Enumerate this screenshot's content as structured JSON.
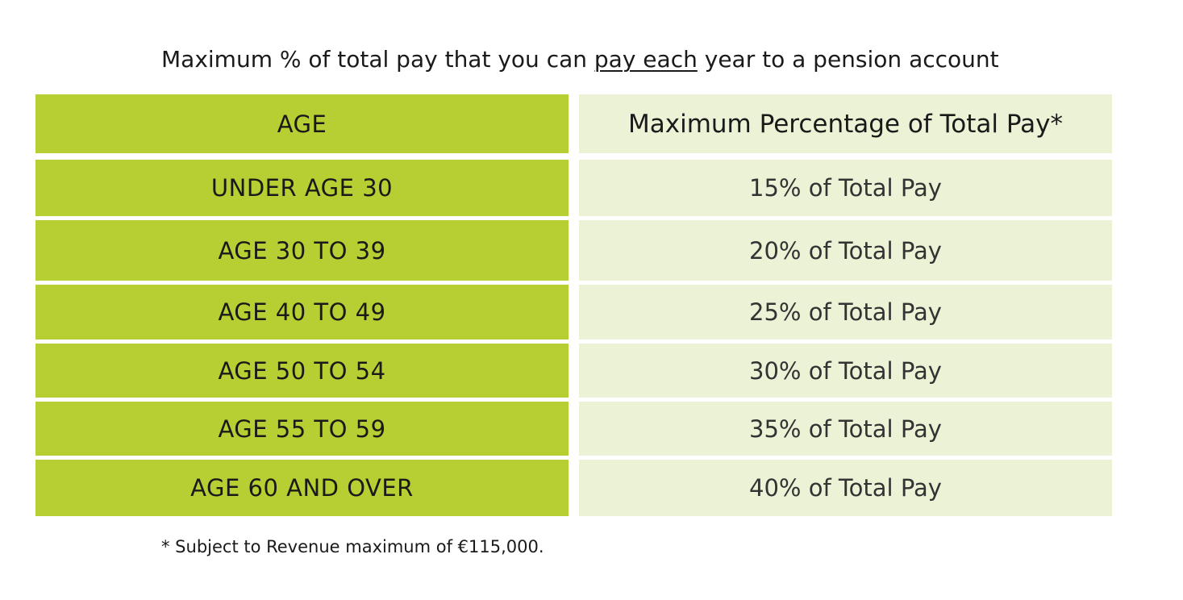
{
  "title": {
    "before": "Maximum % of total pay that you can ",
    "underlined": "pay each",
    "after": " year to a pension account"
  },
  "table": {
    "headers": {
      "age": "AGE",
      "percentage": "Maximum Percentage of Total Pay*"
    },
    "rows": [
      {
        "age": "UNDER AGE 30",
        "percentage": "15% of Total Pay"
      },
      {
        "age": "AGE 30 TO 39",
        "percentage": "20% of Total Pay"
      },
      {
        "age": "AGE 40 TO 49",
        "percentage": "25% of Total Pay"
      },
      {
        "age": "AGE 50 TO 54",
        "percentage": "30% of Total Pay"
      },
      {
        "age": "AGE 55 TO 59",
        "percentage": "35% of Total Pay"
      },
      {
        "age": "AGE 60 AND OVER",
        "percentage": "40% of Total Pay"
      }
    ]
  },
  "footnote": "* Subject to Revenue maximum of €115,000.",
  "colors": {
    "age_column": "#b7cf33",
    "percentage_column": "#ecf2d6"
  }
}
